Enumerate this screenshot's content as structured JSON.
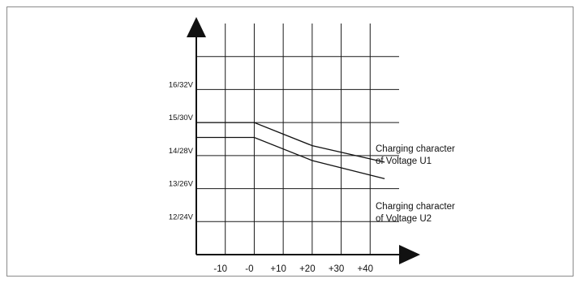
{
  "chart_data": {
    "type": "line",
    "title": "",
    "xlabel": "",
    "ylabel": "",
    "x_tick_labels": [
      "-10",
      "-0",
      "+10",
      "+20",
      "+30",
      "+40"
    ],
    "x_tick_values": [
      -10,
      0,
      10,
      20,
      30,
      40
    ],
    "xlim": [
      -20,
      50
    ],
    "y_tick_labels": [
      "12/24V",
      "13/26V",
      "14/28V",
      "15/30V",
      "16/32V"
    ],
    "y_tick_values": [
      12,
      13,
      14,
      15,
      16
    ],
    "ylim": [
      11,
      18
    ],
    "grid": true,
    "series": [
      {
        "x": [
          -20,
          0,
          20,
          45
        ],
        "y": [
          15,
          15,
          14.3,
          13.8
        ],
        "color": "#111111"
      },
      {
        "x": [
          -20,
          0,
          20,
          45
        ],
        "y": [
          14.55,
          14.55,
          13.85,
          13.3
        ],
        "color": "#111111"
      }
    ],
    "annotations": [
      {
        "lines": [
          "Charging character",
          "of Voltage U1"
        ]
      },
      {
        "lines": [
          "Charging character",
          "of Voltage U2"
        ]
      }
    ],
    "colors": {
      "line": "#111111",
      "grid": "#1a1a1a",
      "border": "#8a8a8a"
    }
  }
}
